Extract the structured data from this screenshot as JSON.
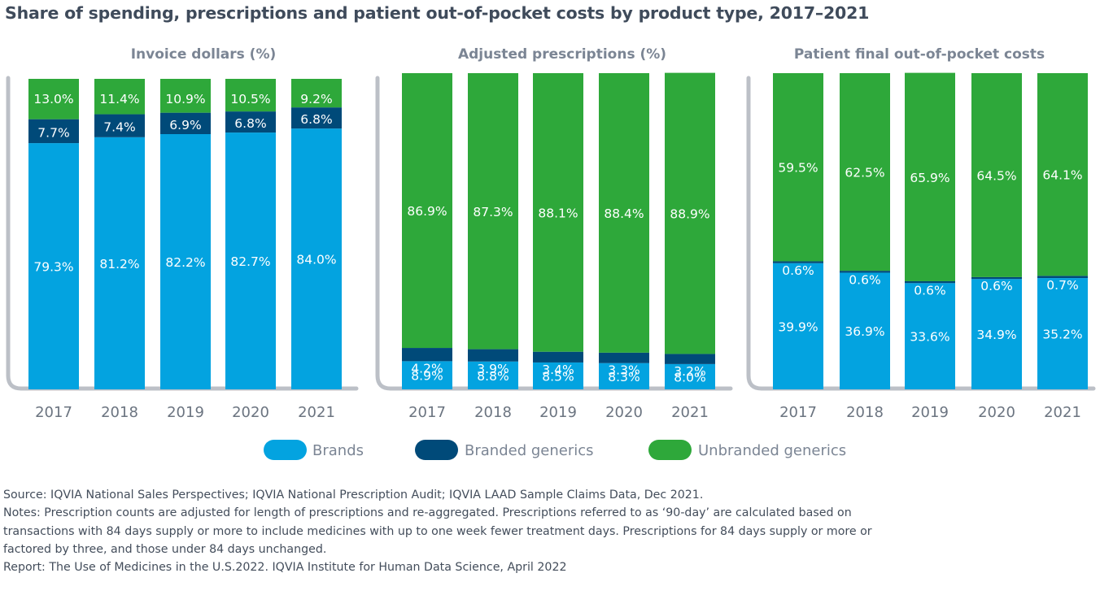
{
  "title": "Share of spending, prescriptions and patient out-of-pocket costs by product type, 2017–2021",
  "colors": {
    "Brands": "#03a3e0",
    "Branded generics": "#004a79",
    "Unbranded generics": "#2ea83a",
    "frame": "#bcc0c7"
  },
  "chart_data": [
    {
      "type": "bar",
      "stacked": true,
      "title": "Invoice dollars  (%)",
      "xlabel": "",
      "ylabel": "",
      "ylim": [
        0,
        100
      ],
      "grid": false,
      "categories": [
        "2017",
        "2018",
        "2019",
        "2020",
        "2021"
      ],
      "series": [
        {
          "name": "Brands",
          "values": [
            79.3,
            81.2,
            82.2,
            82.7,
            84.0
          ],
          "labels": [
            "79.3%",
            "81.2%",
            "82.2%",
            "82.7%",
            "84.0%"
          ]
        },
        {
          "name": "Branded generics",
          "values": [
            7.7,
            7.4,
            6.9,
            6.8,
            6.8
          ],
          "labels": [
            "7.7%",
            "7.4%",
            "6.9%",
            "6.8%",
            "6.8%"
          ]
        },
        {
          "name": "Unbranded generics",
          "values": [
            13.0,
            11.4,
            10.9,
            10.5,
            9.2
          ],
          "labels": [
            "13.0%",
            "11.4%",
            "10.9%",
            "10.5%",
            "9.2%"
          ]
        }
      ]
    },
    {
      "type": "bar",
      "stacked": true,
      "title": "Adjusted prescriptions (%)",
      "xlabel": "",
      "ylabel": "",
      "ylim": [
        0,
        100
      ],
      "grid": false,
      "categories": [
        "2017",
        "2018",
        "2019",
        "2020",
        "2021"
      ],
      "series": [
        {
          "name": "Brands",
          "values": [
            8.9,
            8.8,
            8.5,
            8.3,
            8.0
          ],
          "labels": [
            "8.9%",
            "8.8%",
            "8.5%",
            "8.3%",
            "8.0%"
          ]
        },
        {
          "name": "Branded generics",
          "values": [
            4.2,
            3.9,
            3.4,
            3.3,
            3.2
          ],
          "labels": [
            "4.2%",
            "3.9%",
            "3.4%",
            "3.3%",
            "3.2%"
          ]
        },
        {
          "name": "Unbranded generics",
          "values": [
            86.9,
            87.3,
            88.1,
            88.4,
            88.9
          ],
          "labels": [
            "86.9%",
            "87.3%",
            "88.1%",
            "88.4%",
            "88.9%"
          ]
        }
      ]
    },
    {
      "type": "bar",
      "stacked": true,
      "title": "Patient final out-of-pocket costs",
      "xlabel": "",
      "ylabel": "",
      "ylim": [
        0,
        100
      ],
      "grid": false,
      "categories": [
        "2017",
        "2018",
        "2019",
        "2020",
        "2021"
      ],
      "series": [
        {
          "name": "Brands",
          "values": [
            39.9,
            36.9,
            33.6,
            34.9,
            35.2
          ],
          "labels": [
            "39.9%",
            "36.9%",
            "33.6%",
            "34.9%",
            "35.2%"
          ]
        },
        {
          "name": "Branded generics",
          "values": [
            0.6,
            0.6,
            0.6,
            0.6,
            0.7
          ],
          "labels": [
            "0.6%",
            "0.6%",
            "0.6%",
            "0.6%",
            "0.7%"
          ]
        },
        {
          "name": "Unbranded generics",
          "values": [
            59.5,
            62.5,
            65.9,
            64.5,
            64.1
          ],
          "labels": [
            "59.5%",
            "62.5%",
            "65.9%",
            "64.5%",
            "64.1%"
          ]
        }
      ]
    }
  ],
  "legend": {
    "position": "bottom-center",
    "items": [
      "Brands",
      "Branded generics",
      "Unbranded generics"
    ]
  },
  "notes": {
    "source": "Source: IQVIA National Sales Perspectives; IQVIA National Prescription Audit; IQVIA LAAD Sample Claims Data, Dec 2021.",
    "notes_line1": "Notes: Prescription counts are adjusted for length of prescriptions and re-aggregated. Prescriptions referred to as ‘90-day’ are calculated based on",
    "notes_line2": "transactions with 84 days supply or more to include medicines with up to one week fewer treatment days. Prescriptions for 84 days supply or more or",
    "notes_line3": "factored by three, and those under 84 days unchanged.",
    "report": "Report: The Use of Medicines in the U.S.2022. IQVIA Institute for Human Data Science, April 2022"
  }
}
